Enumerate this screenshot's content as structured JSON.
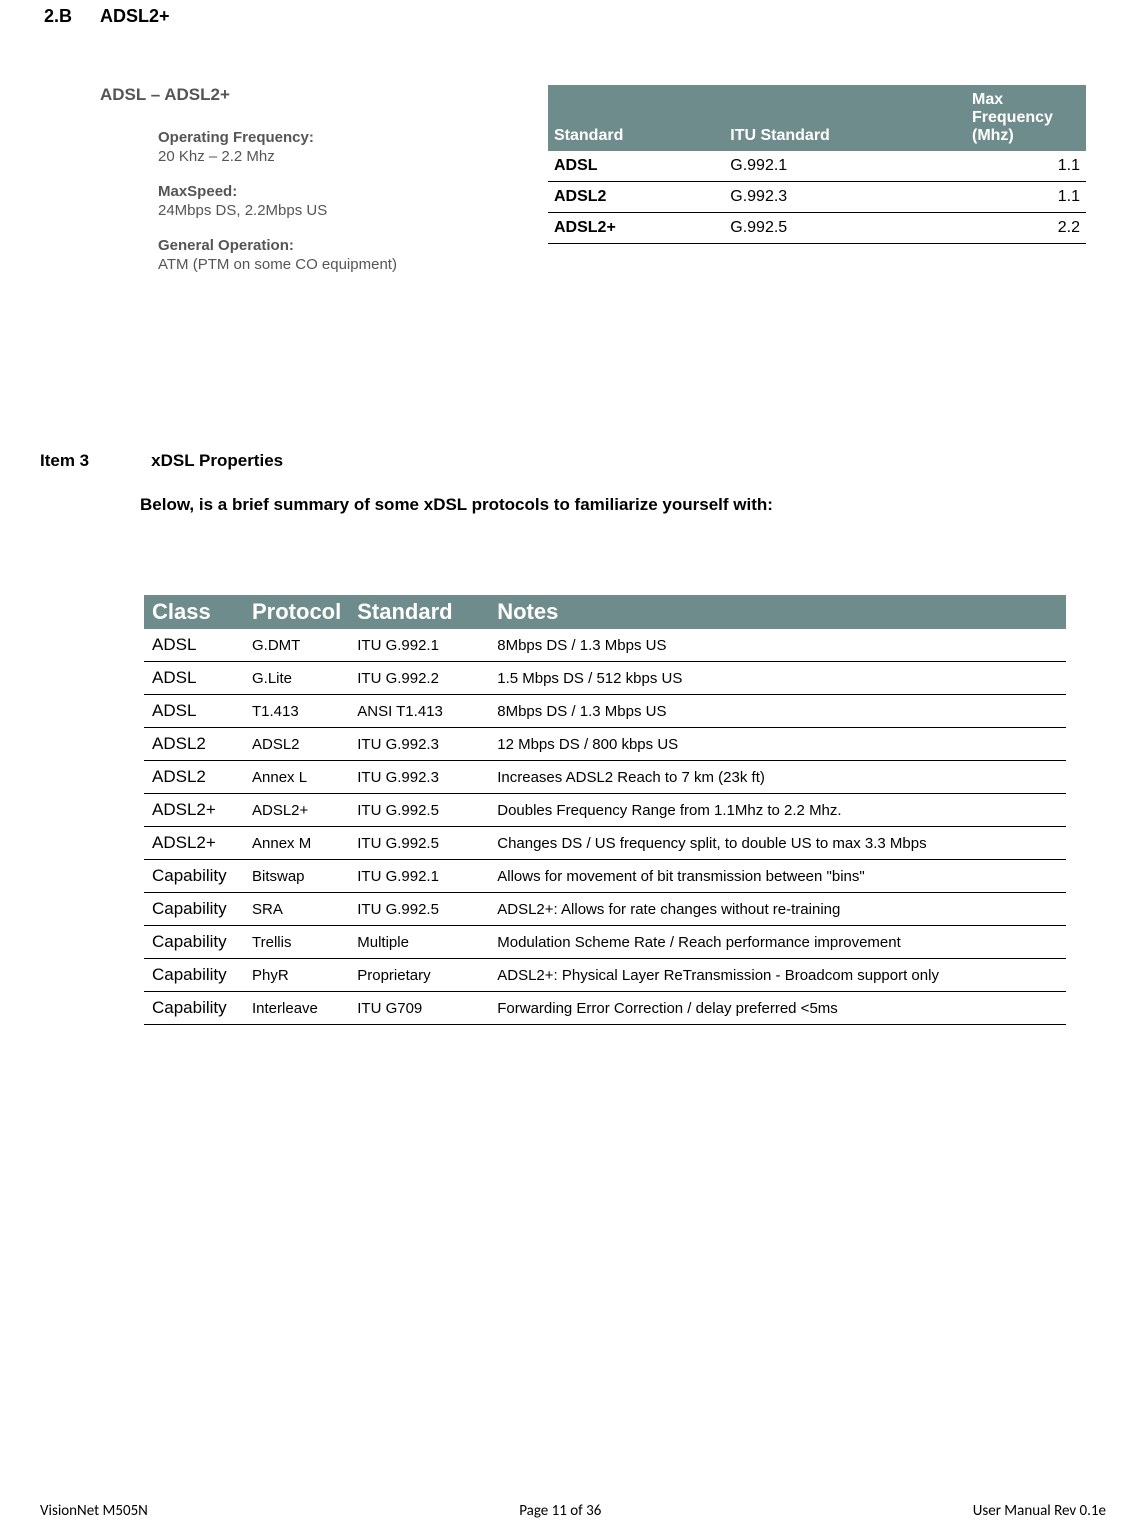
{
  "section": {
    "number": "2.B",
    "title": "ADSL2+"
  },
  "subsection": {
    "title": "ADSL – ADSL2+",
    "specs": [
      {
        "label": "Operating Frequency:",
        "value": "20 Khz – 2.2 Mhz"
      },
      {
        "label": "MaxSpeed:",
        "value": "24Mbps DS, 2.2Mbps US"
      },
      {
        "label": "General Operation:",
        "value": "ATM (PTM on some CO equipment)"
      }
    ]
  },
  "table1": {
    "header_bg": "#6f8c8c",
    "header_color": "#ffffff",
    "columns": [
      "Standard",
      "ITU Standard",
      "Max Frequency (Mhz)"
    ],
    "rows": [
      {
        "standard": "ADSL",
        "itu": "G.992.1",
        "freq": "1.1"
      },
      {
        "standard": "ADSL2",
        "itu": "G.992.3",
        "freq": "1.1"
      },
      {
        "standard": "ADSL2+",
        "itu": "G.992.5",
        "freq": "2.2"
      }
    ]
  },
  "item3": {
    "label": "Item 3",
    "title": "xDSL Properties",
    "summary": "Below, is a brief summary of some xDSL protocols to familiarize yourself with:"
  },
  "table2": {
    "header_bg": "#6f8c8c",
    "header_color": "#ffffff",
    "columns": [
      "Class",
      "Protocol",
      "Standard",
      "Notes"
    ],
    "rows": [
      {
        "c1": "ADSL",
        "c2": "G.DMT",
        "c3": "ITU G.992.1",
        "c4": " 8Mbps DS / 1.3 Mbps US"
      },
      {
        "c1": "ADSL",
        "c2": "G.Lite",
        "c3": "ITU G.992.2",
        "c4": "1.5 Mbps DS / 512 kbps US"
      },
      {
        "c1": "ADSL",
        "c2": "T1.413",
        "c3": "ANSI T1.413",
        "c4": " 8Mbps DS / 1.3 Mbps US"
      },
      {
        "c1": "ADSL2",
        "c2": "ADSL2",
        "c3": "ITU G.992.3",
        "c4": "12 Mbps DS / 800 kbps US"
      },
      {
        "c1": "ADSL2",
        "c2": "Annex L",
        "c3": "ITU G.992.3",
        "c4": "Increases ADSL2 Reach to 7 km (23k ft)"
      },
      {
        "c1": "ADSL2+",
        "c2": "ADSL2+",
        "c3": "ITU G.992.5",
        "c4": "Doubles Frequency Range from 1.1Mhz to 2.2 Mhz."
      },
      {
        "c1": "ADSL2+",
        "c2": "Annex M",
        "c3": "ITU G.992.5",
        "c4": "Changes DS / US frequency split,  to double US to max 3.3 Mbps"
      },
      {
        "c1": "Capability",
        "c2": "Bitswap",
        "c3": "ITU G.992.1",
        "c4": "Allows for movement of bit transmission between \"bins\""
      },
      {
        "c1": "Capability",
        "c2": "SRA",
        "c3": "ITU G.992.5",
        "c4": "ADSL2+: Allows for rate changes without re-training"
      },
      {
        "c1": "Capability",
        "c2": "Trellis",
        "c3": "Multiple",
        "c4": "Modulation Scheme  Rate / Reach performance improvement"
      },
      {
        "c1": "Capability",
        "c2": "PhyR",
        "c3": "Proprietary",
        "c4": "ADSL2+: Physical Layer ReTransmission - Broadcom support only"
      },
      {
        "c1": "Capability",
        "c2": "Interleave",
        "c3": "ITU G709",
        "c4": "Forwarding Error Correction / delay preferred <5ms"
      }
    ]
  },
  "footer": {
    "left": "VisionNet   M505N",
    "center": "Page 11 of 36",
    "right": "User Manual Rev 0.1e"
  }
}
